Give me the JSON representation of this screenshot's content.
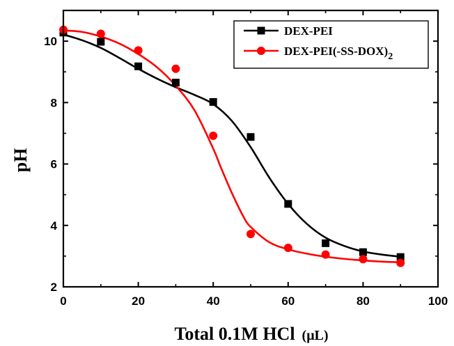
{
  "chart_data": {
    "type": "scatter",
    "xlabel_main": "Total 0.1M HCl",
    "xlabel_unit": "(μL)",
    "ylabel": "pH",
    "xlim": [
      0,
      100
    ],
    "ylim": [
      2,
      11
    ],
    "xticks": [
      0,
      20,
      40,
      60,
      80,
      100
    ],
    "yticks": [
      2,
      4,
      6,
      8,
      10
    ],
    "legend_position": "top-right",
    "series": [
      {
        "name": "DEX-PEI",
        "name_subscript": "",
        "color": "#000000",
        "marker": "square",
        "x": [
          0,
          10,
          20,
          30,
          40,
          50,
          60,
          70,
          80,
          90
        ],
        "y": [
          10.28,
          9.98,
          9.18,
          8.65,
          8.02,
          6.88,
          4.7,
          3.42,
          3.13,
          2.97
        ],
        "fit_x": [
          0,
          5,
          10,
          15,
          20,
          25,
          30,
          35,
          40,
          45,
          50,
          55,
          60,
          65,
          70,
          75,
          80,
          85,
          90
        ],
        "fit_y": [
          10.22,
          10.03,
          9.78,
          9.45,
          9.1,
          8.78,
          8.5,
          8.25,
          7.95,
          7.4,
          6.55,
          5.55,
          4.7,
          4.05,
          3.6,
          3.33,
          3.15,
          3.05,
          2.98
        ]
      },
      {
        "name": "DEX-PEI(-SS-DOX)",
        "name_subscript": "2",
        "color": "#ff0000",
        "marker": "circle",
        "x": [
          0,
          10,
          20,
          30,
          40,
          50,
          60,
          70,
          80,
          90
        ],
        "y": [
          10.37,
          10.24,
          9.7,
          9.1,
          6.92,
          3.72,
          3.27,
          3.05,
          2.9,
          2.78
        ],
        "fit_x": [
          0,
          5,
          10,
          15,
          20,
          25,
          30,
          35,
          40,
          42,
          45,
          48,
          50,
          55,
          60,
          65,
          70,
          75,
          80,
          85,
          90
        ],
        "fit_y": [
          10.35,
          10.3,
          10.15,
          9.92,
          9.58,
          9.15,
          8.55,
          7.75,
          6.5,
          5.9,
          5.05,
          4.3,
          3.95,
          3.45,
          3.22,
          3.08,
          2.98,
          2.91,
          2.86,
          2.82,
          2.8
        ]
      }
    ]
  }
}
